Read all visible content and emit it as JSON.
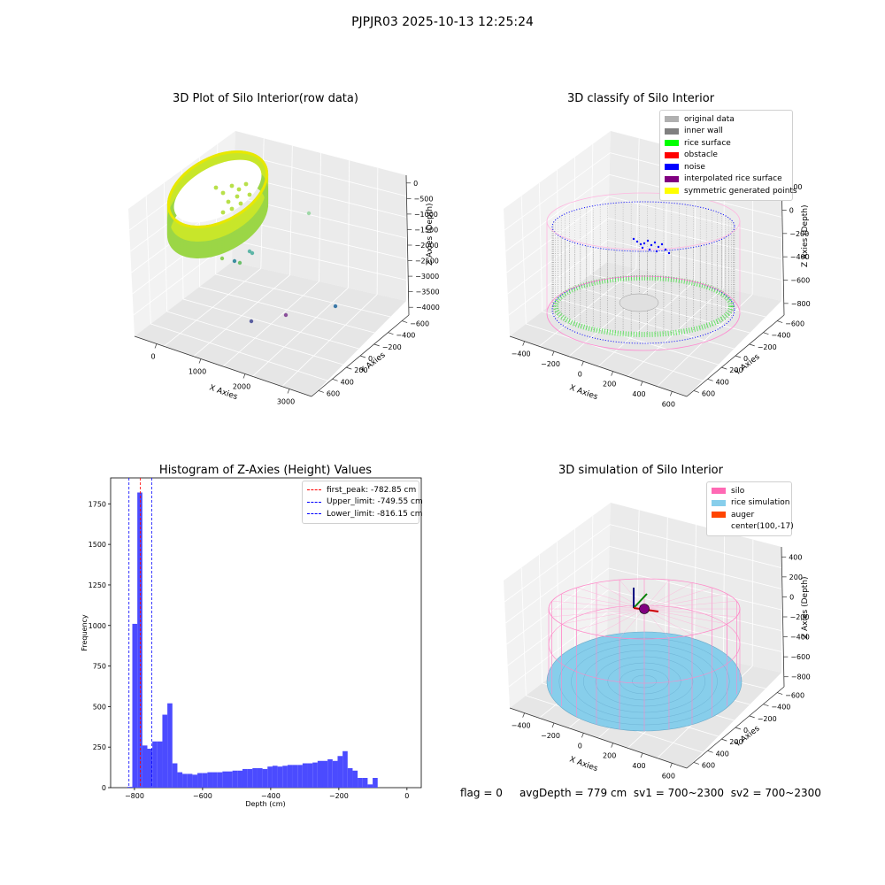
{
  "suptitle": "PJPJR03 2025-10-13 12:25:24",
  "colors": {
    "original_data": "#b0b0b0",
    "inner_wall": "#808080",
    "rice_surface": "#00ff00",
    "obstacle": "#ff0000",
    "noise": "#0000ff",
    "interpolated": "#800080",
    "symmetric": "#ffff00",
    "silo": "#ff69b4",
    "rice_sim": "#87ceeb",
    "auger": "#ff4500",
    "hist_bar": "#4b4bff"
  },
  "footer": {
    "flag": "flag = 0",
    "avg": "avgDepth = 779 cm",
    "sv1": "sv1 = 700~2300",
    "sv2": "sv2 = 700~2300"
  },
  "chart_data": [
    {
      "type": "scatter3d",
      "title": "3D Plot of Silo Interior(row data)",
      "xlabel": "X Axies",
      "ylabel": "Y Axies",
      "zlabel": "Z Axies (Depth)",
      "xticks": [
        "0",
        "1000",
        "2000",
        "3000"
      ],
      "yticks": [
        "−600",
        "−400",
        "−200",
        "0",
        "200",
        "400",
        "600"
      ],
      "zticks": [
        "0",
        "−500",
        "−1000",
        "−1500",
        "−2000",
        "−2500",
        "−3000",
        "−3500",
        "−4000"
      ],
      "grid": true
    },
    {
      "type": "scatter3d",
      "title": "3D classify of Silo Interior",
      "xlabel": "X Axies",
      "ylabel": "Y Axies",
      "zlabel": "Z Axies (Depth)",
      "xticks": [
        "−400",
        "−200",
        "0",
        "200",
        "400",
        "600"
      ],
      "yticks": [
        "−600",
        "−400",
        "−200",
        "0",
        "200",
        "400",
        "600"
      ],
      "zticks": [
        "200",
        "0",
        "−200",
        "−400",
        "−600",
        "−800"
      ],
      "legend": [
        {
          "label": "original data",
          "color": "#b0b0b0"
        },
        {
          "label": "inner wall",
          "color": "#808080"
        },
        {
          "label": "rice surface",
          "color": "#00ff00"
        },
        {
          "label": "obstacle",
          "color": "#ff0000"
        },
        {
          "label": "noise",
          "color": "#0000ff"
        },
        {
          "label": "interpolated rice surface",
          "color": "#800080"
        },
        {
          "label": "symmetric generated points",
          "color": "#ffff00"
        }
      ],
      "legend_loc": "top-right",
      "grid": true
    },
    {
      "type": "bar",
      "title": "Histogram of Z-Axies (Height) Values",
      "xlabel": "Depth (cm)",
      "ylabel": "Frequency",
      "xlim": [
        -870,
        42
      ],
      "ylim": [
        0,
        1910
      ],
      "xticks": [
        -800,
        -600,
        -400,
        -200,
        0
      ],
      "xtick_labels": [
        "−800",
        "−600",
        "−400",
        "−200",
        "0"
      ],
      "yticks": [
        0,
        250,
        500,
        750,
        1000,
        1250,
        1500,
        1750
      ],
      "yticks_labels": [
        "0",
        "250",
        "500",
        "750",
        "1000",
        "1250",
        "1500",
        "1750"
      ],
      "bin_start": -821,
      "bin_width": 14.7,
      "values": [
        5,
        1010,
        1820,
        260,
        240,
        285,
        285,
        450,
        520,
        150,
        95,
        85,
        85,
        80,
        90,
        90,
        95,
        95,
        95,
        100,
        100,
        105,
        105,
        115,
        115,
        120,
        120,
        115,
        130,
        135,
        130,
        135,
        140,
        140,
        140,
        150,
        150,
        155,
        165,
        165,
        175,
        165,
        195,
        225,
        120,
        105,
        60,
        60,
        20,
        60
      ],
      "lines": [
        {
          "label": "first_peak: -782.85 cm",
          "x": -782.85,
          "color": "#ff0000"
        },
        {
          "label": "Upper_limit: -749.55 cm",
          "x": -749.55,
          "color": "#0000ff"
        },
        {
          "label": "Lower_limit: -816.15 cm",
          "x": -816.15,
          "color": "#0000ff"
        }
      ],
      "legend_loc": "top-right"
    },
    {
      "type": "surface3d",
      "title": "3D simulation of Silo Interior",
      "xlabel": "X Axies",
      "ylabel": "Y Axies",
      "zlabel": "Z Axies (Depth)",
      "xticks": [
        "−400",
        "−200",
        "0",
        "200",
        "400",
        "600"
      ],
      "yticks": [
        "−600",
        "−400",
        "−200",
        "0",
        "200",
        "400",
        "600"
      ],
      "zticks": [
        "400",
        "200",
        "0",
        "−200",
        "−400",
        "−600",
        "−800"
      ],
      "legend": [
        {
          "label": "silo",
          "color": "#ff69b4"
        },
        {
          "label": "rice simulation",
          "color": "#87ceeb"
        },
        {
          "label": "auger",
          "color": "#ff4500"
        },
        {
          "label": "center(100,-17)",
          "color": ""
        }
      ],
      "legend_loc": "top-right",
      "grid": true
    }
  ]
}
